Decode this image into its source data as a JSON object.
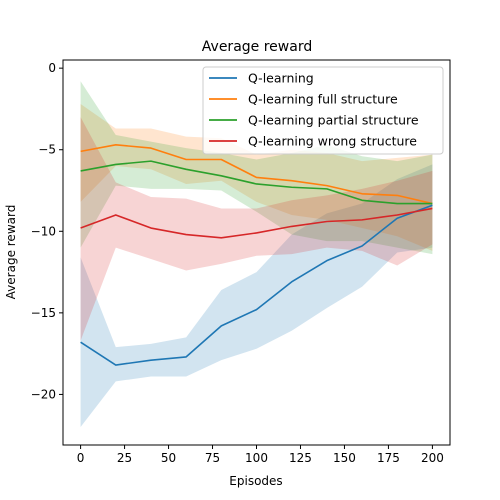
{
  "chart_data": {
    "type": "line",
    "title": "Average reward",
    "xlabel": "Episodes",
    "ylabel": "Average reward",
    "xlim": [
      -10,
      210
    ],
    "ylim": [
      -23.1,
      0.5
    ],
    "xticks": [
      0,
      25,
      50,
      75,
      100,
      125,
      150,
      175,
      200
    ],
    "yticks": [
      0,
      -5,
      -10,
      -15,
      -20
    ],
    "legend_position": "top-right",
    "x": [
      0,
      20,
      40,
      60,
      80,
      100,
      120,
      140,
      160,
      180,
      200
    ],
    "series": [
      {
        "name": "Q-learning",
        "color": "#1f77b4",
        "values": [
          -16.8,
          -18.2,
          -17.9,
          -17.7,
          -15.8,
          -14.8,
          -13.1,
          -11.8,
          -10.9,
          -9.2,
          -8.4
        ],
        "lower": [
          -22.0,
          -19.2,
          -18.9,
          -18.9,
          -17.9,
          -17.2,
          -16.1,
          -14.7,
          -13.4,
          -11.3,
          -11.0
        ],
        "upper": [
          -11.6,
          -17.1,
          -16.9,
          -16.5,
          -13.6,
          -12.5,
          -10.2,
          -8.9,
          -8.3,
          -6.8,
          -5.9
        ]
      },
      {
        "name": "Q-learning full structure",
        "color": "#ff7f0e",
        "values": [
          -5.1,
          -4.7,
          -4.9,
          -5.6,
          -5.6,
          -6.7,
          -6.9,
          -7.2,
          -7.7,
          -7.8,
          -8.3
        ],
        "lower": [
          -8.2,
          -6.0,
          -6.2,
          -7.1,
          -6.9,
          -8.2,
          -9.0,
          -9.3,
          -9.8,
          -10.3,
          -11.2
        ],
        "upper": [
          -2.2,
          -3.7,
          -3.7,
          -4.2,
          -4.3,
          -5.3,
          -5.0,
          -5.2,
          -5.7,
          -5.5,
          -5.3
        ]
      },
      {
        "name": "Q-learning partial structure",
        "color": "#2ca02c",
        "values": [
          -6.3,
          -5.9,
          -5.7,
          -6.2,
          -6.6,
          -7.1,
          -7.3,
          -7.4,
          -8.1,
          -8.3,
          -8.3
        ],
        "lower": [
          -11.0,
          -7.2,
          -7.4,
          -7.4,
          -7.5,
          -8.8,
          -10.2,
          -10.6,
          -10.6,
          -11.0,
          -11.4
        ],
        "upper": [
          -0.8,
          -4.1,
          -4.5,
          -4.9,
          -5.2,
          -5.6,
          -5.2,
          -4.7,
          -5.4,
          -5.7,
          -5.3
        ]
      },
      {
        "name": "Q-learning wrong structure",
        "color": "#d62728",
        "values": [
          -9.8,
          -9.0,
          -9.8,
          -10.2,
          -10.4,
          -10.1,
          -9.7,
          -9.4,
          -9.3,
          -9.0,
          -8.6
        ],
        "lower": [
          -16.7,
          -11.0,
          -11.7,
          -12.4,
          -12.0,
          -11.5,
          -11.4,
          -11.0,
          -11.2,
          -12.1,
          -10.8
        ],
        "upper": [
          -3.0,
          -7.0,
          -7.9,
          -8.0,
          -8.6,
          -8.6,
          -8.1,
          -7.8,
          -7.4,
          -6.9,
          -6.3
        ]
      }
    ]
  }
}
